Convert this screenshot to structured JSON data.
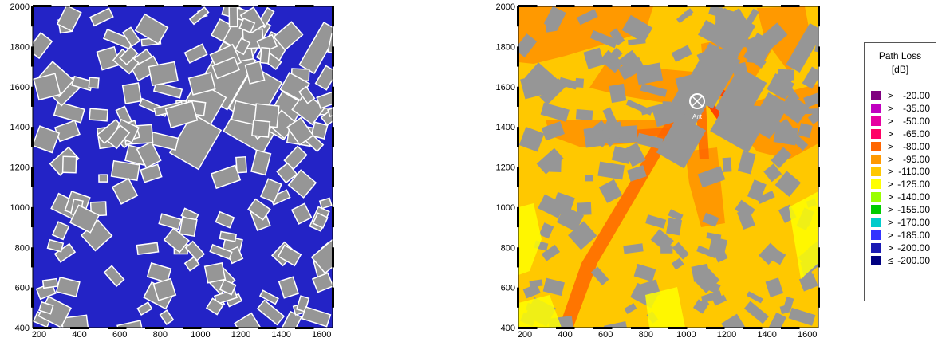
{
  "axes": {
    "x_ticks": [
      "200",
      "400",
      "600",
      "800",
      "1000",
      "1200",
      "1400",
      "1600"
    ],
    "y_ticks": [
      "400",
      "600",
      "800",
      "1000",
      "1200",
      "1400",
      "1600",
      "1800",
      "2000"
    ]
  },
  "left_map": {
    "background_color": "#2323c6",
    "building_color": "#969696",
    "edge_color": "#ffffff"
  },
  "right_map": {
    "antenna_label": "Ant"
  },
  "legend": {
    "title": "Path Loss",
    "unit": "[dB]",
    "items": [
      {
        "op": ">",
        "value": "-20.00",
        "color": "#800080"
      },
      {
        "op": ">",
        "value": "-35.00",
        "color": "#c000c0"
      },
      {
        "op": ">",
        "value": "-50.00",
        "color": "#e600a0"
      },
      {
        "op": ">",
        "value": "-65.00",
        "color": "#ff0066"
      },
      {
        "op": ">",
        "value": "-80.00",
        "color": "#ff6600"
      },
      {
        "op": ">",
        "value": "-95.00",
        "color": "#ff9900"
      },
      {
        "op": ">",
        "value": "-110.00",
        "color": "#ffc800"
      },
      {
        "op": ">",
        "value": "-125.00",
        "color": "#ffff00"
      },
      {
        "op": ">",
        "value": "-140.00",
        "color": "#99ff00"
      },
      {
        "op": ">",
        "value": "-155.00",
        "color": "#00cc00"
      },
      {
        "op": ">",
        "value": "-170.00",
        "color": "#00cccc"
      },
      {
        "op": ">",
        "value": "-185.00",
        "color": "#3333ff"
      },
      {
        "op": ">",
        "value": "-200.00",
        "color": "#1a1ab3"
      },
      {
        "op": "≤",
        "value": "-200.00",
        "color": "#000080"
      }
    ]
  }
}
